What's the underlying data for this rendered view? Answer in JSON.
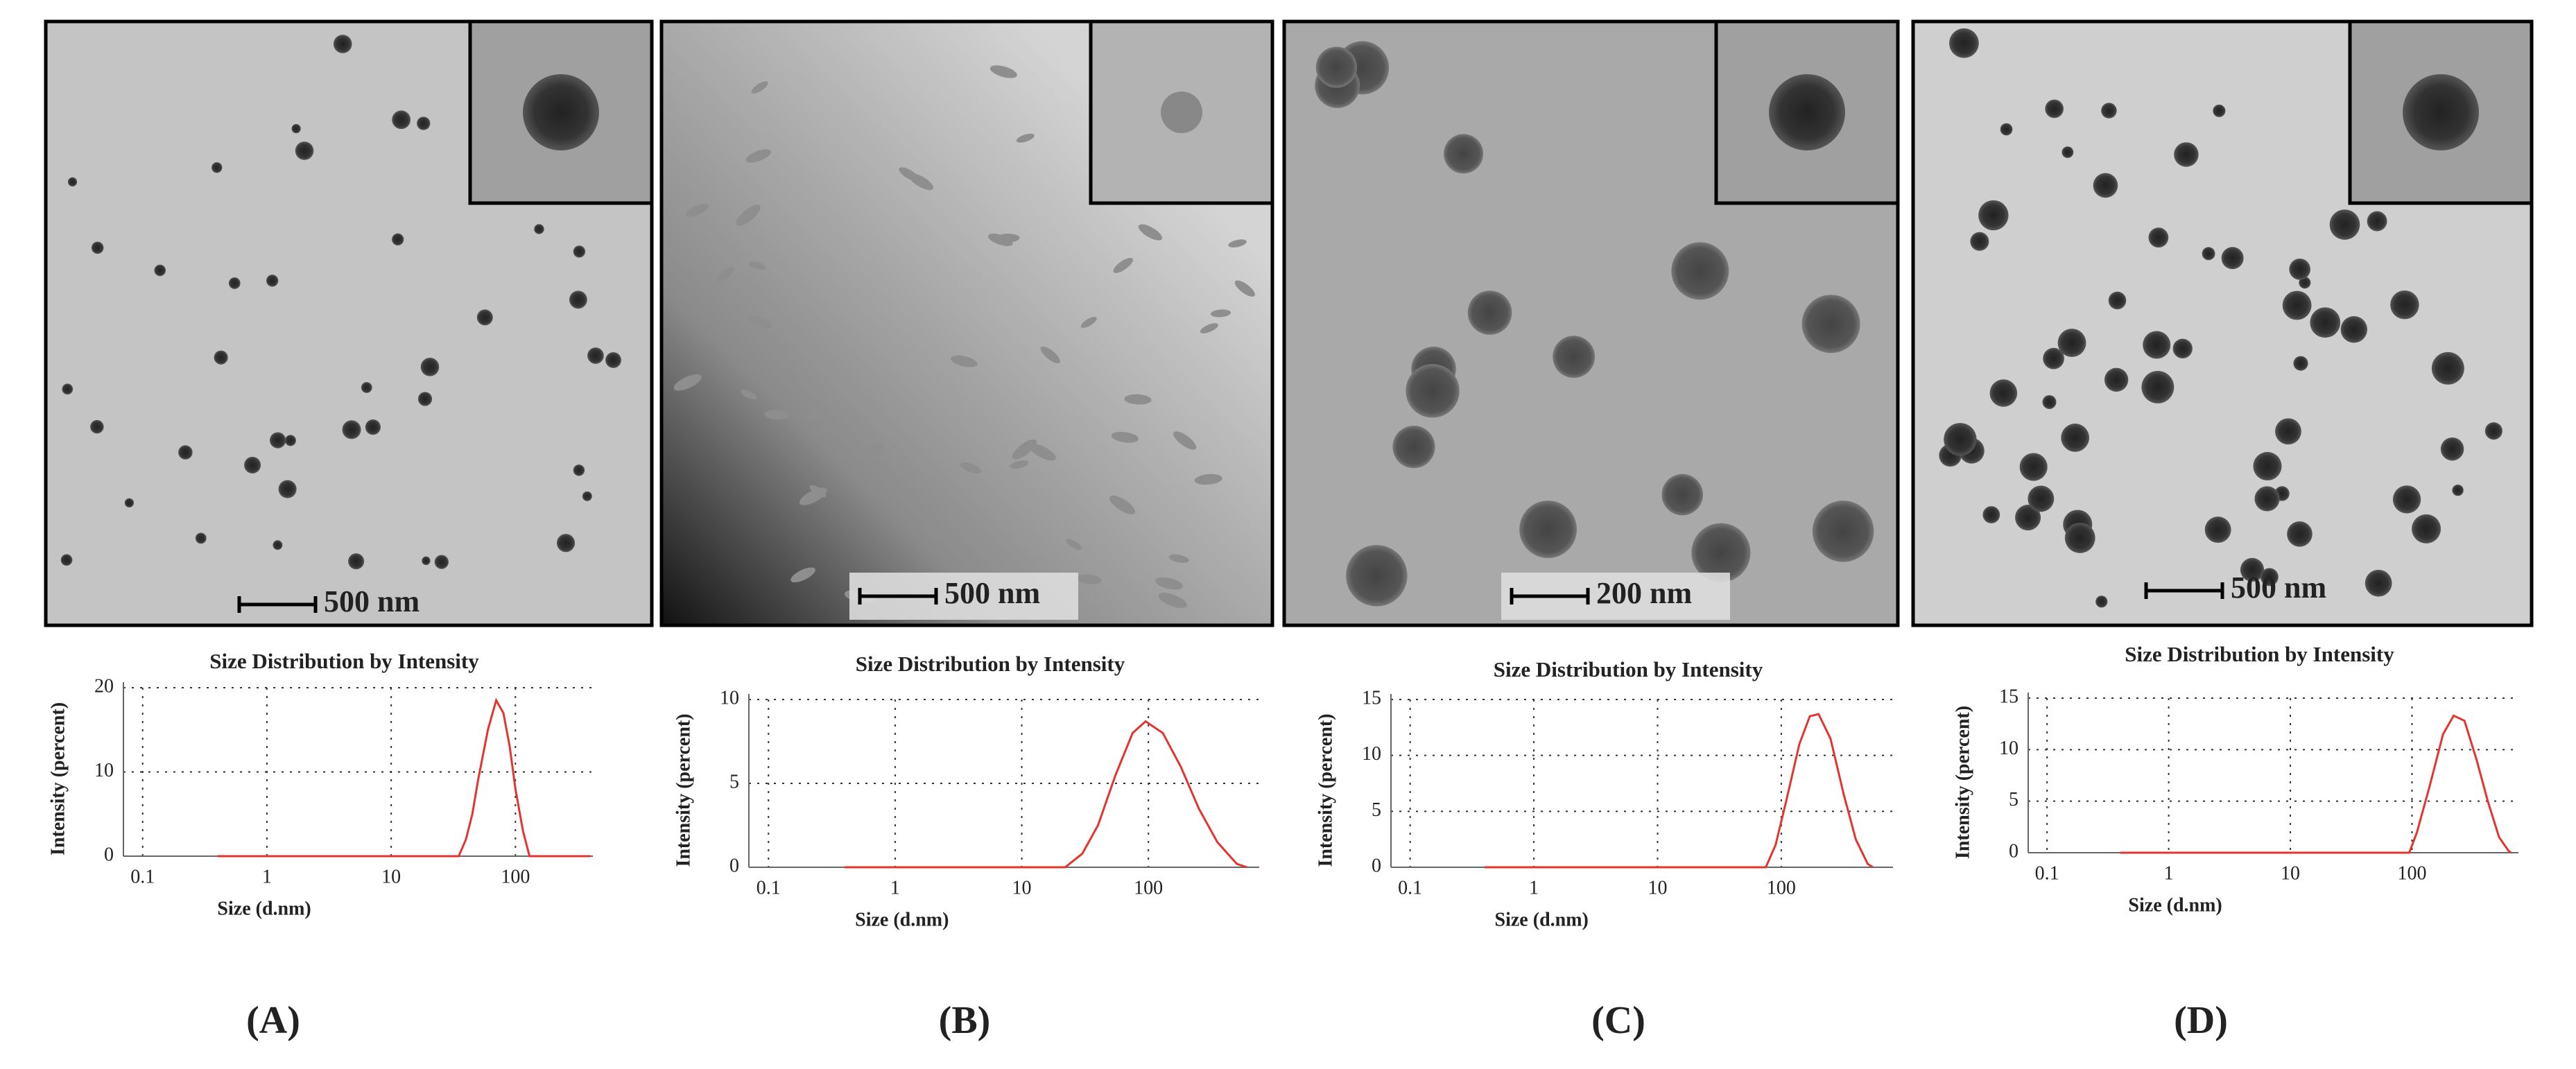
{
  "panels": [
    {
      "label": "(A)",
      "scale_bar": "500 nm"
    },
    {
      "label": "(B)",
      "scale_bar": "500 nm"
    },
    {
      "label": "(C)",
      "scale_bar": "200 nm"
    },
    {
      "label": "(D)",
      "scale_bar": "500 nm"
    }
  ],
  "chart_data": [
    {
      "type": "line",
      "title": "Size Distribution by Intensity",
      "x_label": "Size (d.nm)",
      "y_label": "Intensity (percent)",
      "x_scale": "log",
      "xlim": [
        0.07,
        420
      ],
      "xticks": [
        0.1,
        1,
        10,
        100
      ],
      "ylim": [
        0,
        20
      ],
      "yticks": [
        0,
        10,
        20
      ],
      "grid": true,
      "x": [
        0.4,
        35,
        40,
        45,
        50,
        60,
        70,
        80,
        90,
        100,
        115,
        130,
        400
      ],
      "series": [
        {
          "name": "Intensity",
          "color": "#e3342f",
          "values": [
            0,
            0,
            2,
            5,
            9,
            15,
            18.5,
            17,
            13,
            8,
            3,
            0,
            0
          ]
        }
      ]
    },
    {
      "type": "line",
      "title": "Size Distribution by Intensity",
      "x_label": "Size (d.nm)",
      "y_label": "Intensity (percent)",
      "x_scale": "log",
      "xlim": [
        0.07,
        750
      ],
      "xticks": [
        0.1,
        1,
        10,
        100
      ],
      "ylim": [
        0,
        10
      ],
      "yticks": [
        0,
        5,
        10
      ],
      "grid": true,
      "x": [
        0.4,
        22,
        30,
        40,
        55,
        75,
        95,
        130,
        180,
        250,
        350,
        500,
        600
      ],
      "series": [
        {
          "name": "Intensity",
          "color": "#e3342f",
          "values": [
            0,
            0,
            0.8,
            2.5,
            5.5,
            8,
            8.7,
            8,
            6,
            3.5,
            1.5,
            0.2,
            0
          ]
        }
      ]
    },
    {
      "type": "line",
      "title": "Size Distribution by Intensity",
      "x_label": "Size (d.nm)",
      "y_label": "Intensity (percent)",
      "x_scale": "log",
      "xlim": [
        0.07,
        800
      ],
      "xticks": [
        0.1,
        1,
        10,
        100
      ],
      "ylim": [
        0,
        15
      ],
      "yticks": [
        0,
        5,
        10,
        15
      ],
      "grid": true,
      "x": [
        0.4,
        75,
        90,
        110,
        140,
        170,
        200,
        250,
        320,
        400,
        500,
        550
      ],
      "series": [
        {
          "name": "Intensity",
          "color": "#e3342f",
          "values": [
            0,
            0,
            2,
            6,
            11,
            13.5,
            13.7,
            11.5,
            6.5,
            2.5,
            0.3,
            0
          ]
        }
      ]
    },
    {
      "type": "line",
      "title": "Size Distribution by Intensity",
      "x_label": "Size (d.nm)",
      "y_label": "Intensity (percent)",
      "x_scale": "log",
      "xlim": [
        0.07,
        750
      ],
      "xticks": [
        0.1,
        1,
        10,
        100
      ],
      "ylim": [
        0,
        15
      ],
      "yticks": [
        0,
        5,
        10,
        15
      ],
      "grid": true,
      "x": [
        0.4,
        95,
        110,
        140,
        180,
        220,
        270,
        340,
        420,
        520,
        620,
        650
      ],
      "series": [
        {
          "name": "Intensity",
          "color": "#e3342f",
          "values": [
            0,
            0,
            2,
            6.5,
            11.5,
            13.3,
            12.8,
            9,
            5,
            1.5,
            0.2,
            0
          ]
        }
      ]
    }
  ]
}
